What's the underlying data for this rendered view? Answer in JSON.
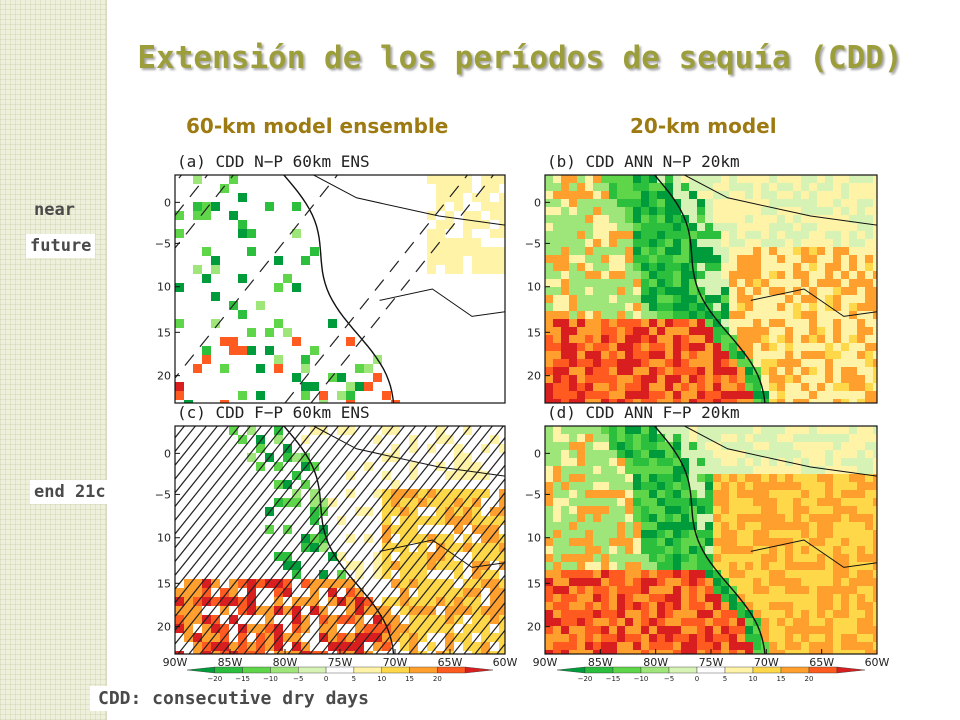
{
  "title": "Extensión de los períodos de sequía (CDD)",
  "columns": [
    "60-km model ensemble",
    "20-km model"
  ],
  "rows": [
    "near\nfuture",
    "end 21c"
  ],
  "row_labels": {
    "near_line1": "near",
    "near_line2": "future",
    "end": "end 21c"
  },
  "footnote": "CDD: consecutive dry days",
  "panels": [
    {
      "label": "(a) CDD N−P 60km ENS",
      "hatching": "sparse",
      "fill": "sparse"
    },
    {
      "label": "(b) CDD ANN N−P 20km",
      "hatching": "none",
      "fill": "dense"
    },
    {
      "label": "(c) CDD F−P 60km ENS",
      "hatching": "dense",
      "fill": "medium"
    },
    {
      "label": "(d) CDD ANN F−P 20km",
      "hatching": "none",
      "fill": "dense"
    }
  ],
  "lat_ticks": [
    "0",
    "−5",
    "10",
    "15",
    "20"
  ],
  "lon_ticks": [
    "90W",
    "85W",
    "80W",
    "75W",
    "70W",
    "65W",
    "60W"
  ],
  "colorbar": {
    "ticks": [
      "−20",
      "−15",
      "−10",
      "−5",
      "0",
      "5",
      "10",
      "15",
      "20"
    ],
    "colors": [
      "#009b3a",
      "#2bbf3d",
      "#5fd64a",
      "#9ee67a",
      "#d6f2b4",
      "#ffffff",
      "#fff3a8",
      "#ffd84a",
      "#ff9f2e",
      "#ff5a1f",
      "#d81e1e"
    ]
  }
}
